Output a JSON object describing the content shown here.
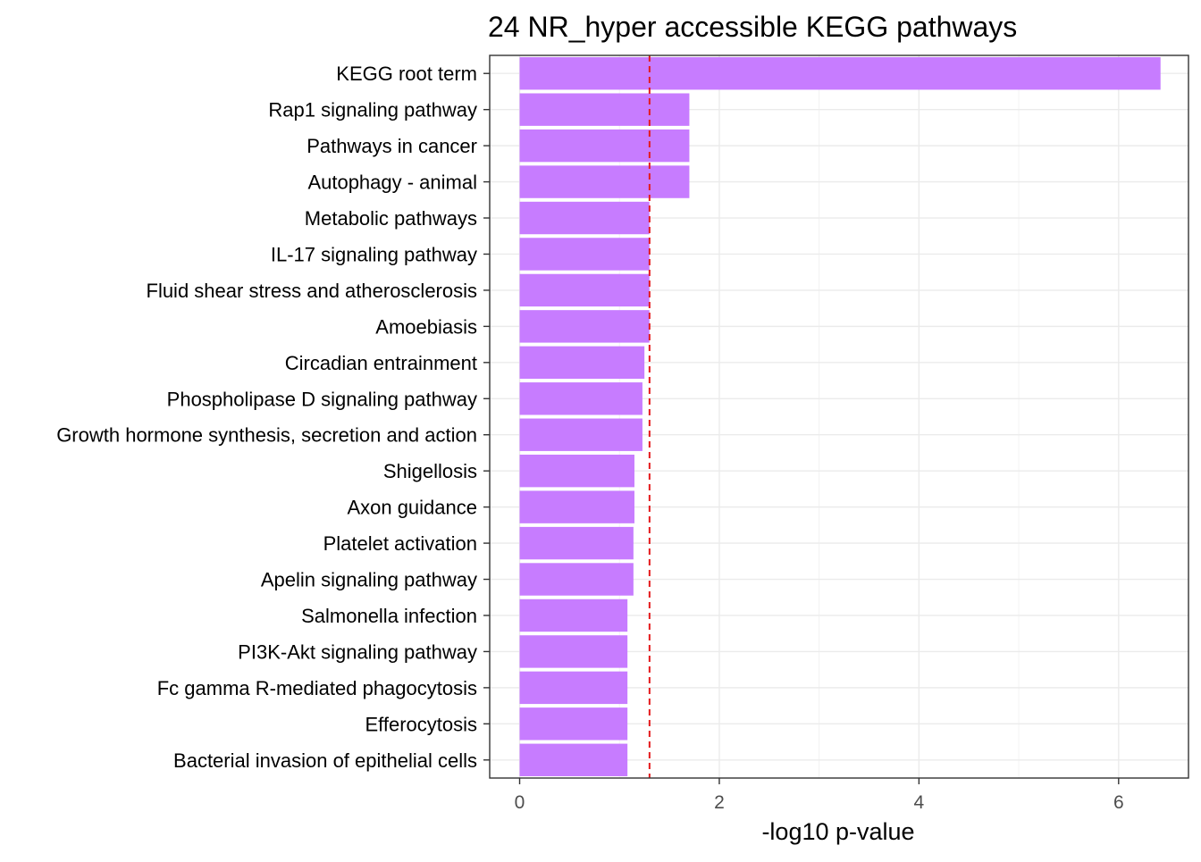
{
  "chart_data": {
    "type": "bar",
    "orientation": "horizontal",
    "title": "24 NR_hyper accessible KEGG pathways",
    "xlabel": "-log10 p-value",
    "ylabel": "",
    "xlim": [
      -0.3,
      6.7
    ],
    "x_ticks": [
      0,
      2,
      4,
      6
    ],
    "x_tick_labels": [
      "0",
      "2",
      "4",
      "6"
    ],
    "grid": true,
    "bar_color": "#c77cff",
    "threshold": {
      "value": 1.301,
      "color": "#e41a1c",
      "style": "dashed"
    },
    "categories": [
      "KEGG root term",
      "Rap1 signaling pathway",
      "Pathways in cancer",
      "Autophagy - animal",
      "Metabolic pathways",
      "IL-17 signaling pathway",
      "Fluid shear stress and atherosclerosis",
      "Amoebiasis",
      "Circadian entrainment",
      "Phospholipase D signaling pathway",
      "Growth hormone synthesis, secretion and action",
      "Shigellosis",
      "Axon guidance",
      "Platelet activation",
      "Apelin signaling pathway",
      "Salmonella infection",
      "PI3K-Akt signaling pathway",
      "Fc gamma R-mediated phagocytosis",
      "Efferocytosis",
      "Bacterial invasion of epithelial cells"
    ],
    "values": [
      6.42,
      1.7,
      1.7,
      1.7,
      1.3,
      1.3,
      1.3,
      1.3,
      1.25,
      1.23,
      1.23,
      1.15,
      1.15,
      1.14,
      1.14,
      1.08,
      1.08,
      1.08,
      1.08,
      1.08
    ]
  }
}
